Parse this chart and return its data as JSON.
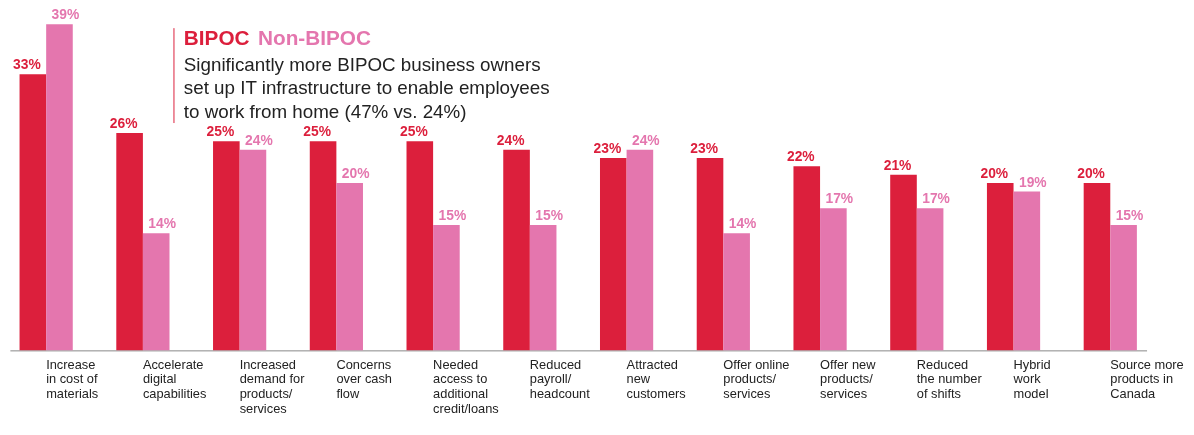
{
  "chart_data": {
    "type": "bar",
    "categories": [
      "Increase\nin cost of\nmaterials",
      "Accelerate\ndigital\ncapabilities",
      "Increased\ndemand for\nproducts/\nservices",
      "Concerns\nover cash\nflow",
      "Needed\naccess to\nadditional\ncredit/loans",
      "Reduced\npayroll/\nheadcount",
      "Attracted\nnew\ncustomers",
      "Offer online\nproducts/\nservices",
      "Offer new\nproducts/\nservices",
      "Reduced\nthe number\nof shifts",
      "Hybrid\nwork\nmodel",
      "Source more\nproducts in\nCanada"
    ],
    "series": [
      {
        "name": "BIPOC",
        "color": "#dc1f3c",
        "values": [
          33,
          26,
          25,
          25,
          25,
          24,
          23,
          23,
          22,
          21,
          20,
          20
        ],
        "value_labels": [
          "33%",
          "26%",
          "25%",
          "25%",
          "25%",
          "24%",
          "23%",
          "23%",
          "22%",
          "21%",
          "20%",
          "20%"
        ]
      },
      {
        "name": "Non-BIPOC",
        "color": "#e476ae",
        "values": [
          39,
          14,
          24,
          20,
          15,
          15,
          24,
          14,
          17,
          17,
          19,
          15
        ],
        "value_labels": [
          "39%",
          "14%",
          "24%",
          "20%",
          "15%",
          "15%",
          "24%",
          "14%",
          "17%",
          "17%",
          "19%",
          "15%"
        ]
      }
    ],
    "annotations": [
      "Significantly more BIPOC business owners\nset up IT infrastructure to enable employees\nto work from home (47% vs. 24%)"
    ],
    "tick_labels": "x",
    "legend": "top",
    "grid": false
  }
}
